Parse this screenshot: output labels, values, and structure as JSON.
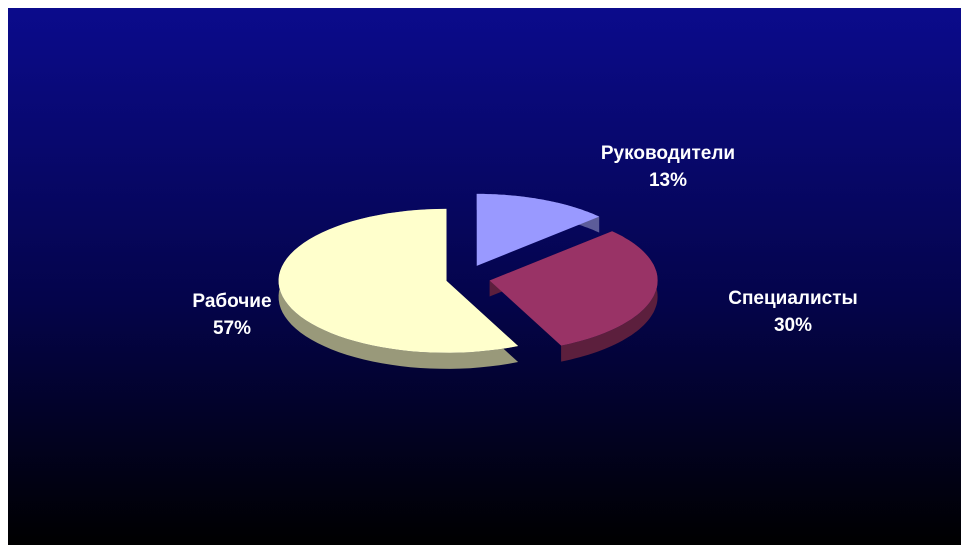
{
  "chart_data": {
    "type": "pie",
    "categories": [
      "Руководители",
      "Специалисты",
      "Рабочие"
    ],
    "values": [
      13,
      30,
      57
    ],
    "value_labels": [
      "13%",
      "30%",
      "57%"
    ],
    "colors": [
      "#9999ff",
      "#993366",
      "#ffffcc"
    ],
    "exploded": true,
    "three_d": true
  }
}
